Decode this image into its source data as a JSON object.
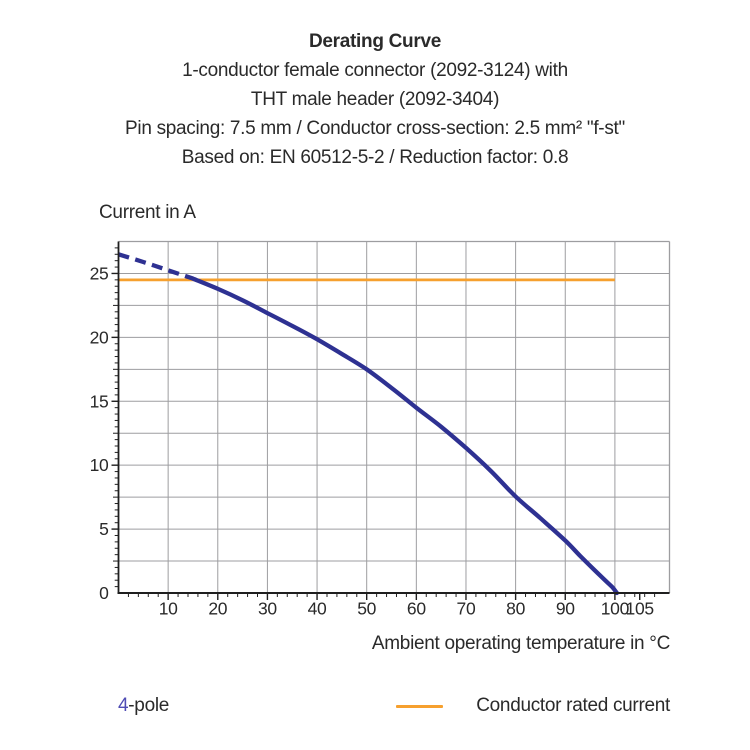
{
  "header": {
    "title": "Derating Curve",
    "subtitle_lines": [
      "1-conductor female connector (2092-3124) with",
      "THT male header (2092-3404)",
      "Pin spacing: 7.5 mm / Conductor cross-section: 2.5 mm² \"f-st\"",
      "Based on: EN 60512-5-2 / Reduction factor: 0.8"
    ]
  },
  "legend": {
    "pole_value": "4",
    "pole_suffix": "-pole",
    "rated_current_label": "Conductor rated current"
  },
  "colors": {
    "curve_blue": "#2e3192",
    "legend_pole_blue": "#4f4cb4",
    "rated_orange": "#f6a02e",
    "grid_gray": "#9d9da0",
    "axis_dark": "#1f1f1f",
    "text_dark": "#2a2a2a"
  },
  "chart_data": {
    "type": "line",
    "title": "Derating Curve",
    "xlabel": "Ambient operating temperature in °C",
    "ylabel": "Current in A",
    "xlim": [
      0,
      111
    ],
    "ylim": [
      0,
      27.5
    ],
    "xticks": [
      10,
      20,
      30,
      40,
      50,
      60,
      70,
      80,
      90,
      100,
      105
    ],
    "yticks": [
      0,
      5,
      10,
      15,
      20,
      25
    ],
    "x_gridlines": [
      10,
      20,
      30,
      40,
      50,
      60,
      70,
      80,
      90,
      100
    ],
    "y_gridline_step": 2.5,
    "x_minor_tick_step": 2,
    "y_minor_tick_step": 0.5,
    "grid": true,
    "legend_position": "bottom",
    "series": [
      {
        "name": "4-pole",
        "color": "#2e3192",
        "dashed_until_x": 15,
        "points": [
          [
            0,
            26.5
          ],
          [
            5,
            25.9
          ],
          [
            10,
            25.25
          ],
          [
            15,
            24.6
          ],
          [
            20,
            23.8
          ],
          [
            25,
            22.9
          ],
          [
            30,
            21.9
          ],
          [
            35,
            20.9
          ],
          [
            40,
            19.85
          ],
          [
            45,
            18.7
          ],
          [
            50,
            17.5
          ],
          [
            55,
            16.05
          ],
          [
            60,
            14.5
          ],
          [
            65,
            13.0
          ],
          [
            70,
            11.35
          ],
          [
            75,
            9.55
          ],
          [
            80,
            7.55
          ],
          [
            85,
            5.85
          ],
          [
            90,
            4.1
          ],
          [
            93,
            2.9
          ],
          [
            96,
            1.75
          ],
          [
            98,
            1.0
          ],
          [
            99.5,
            0.45
          ],
          [
            100.4,
            0
          ]
        ]
      },
      {
        "name": "Conductor rated current",
        "color": "#f6a02e",
        "line_style": "solid",
        "points": [
          [
            0,
            24.5
          ],
          [
            100,
            24.5
          ]
        ]
      }
    ]
  }
}
